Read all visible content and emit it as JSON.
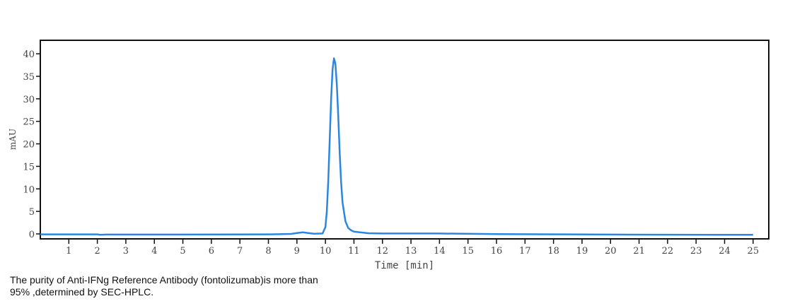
{
  "chart_data": {
    "type": "line",
    "title": "",
    "xlabel": "Time [min]",
    "ylabel": "mAU",
    "xlim": [
      0,
      25.55
    ],
    "ylim": [
      -1.1,
      43
    ],
    "xticks": [
      1,
      2,
      3,
      4,
      5,
      6,
      7,
      8,
      9,
      10,
      11,
      12,
      13,
      14,
      15,
      16,
      17,
      18,
      19,
      20,
      21,
      22,
      23,
      24,
      25
    ],
    "yticks": [
      0,
      5,
      10,
      15,
      20,
      25,
      30,
      35,
      40
    ],
    "grid": false,
    "line_color": "#2b86e0",
    "series": [
      {
        "x": [
          0,
          2,
          2.1,
          2.3,
          5,
          8,
          8.8,
          9.0,
          9.2,
          9.4,
          9.6,
          9.9,
          10.0,
          10.05,
          10.1,
          10.15,
          10.2,
          10.25,
          10.3,
          10.35,
          10.4,
          10.45,
          10.5,
          10.55,
          10.6,
          10.7,
          10.8,
          10.9,
          11.0,
          11.5,
          12,
          14,
          16,
          18.5,
          20,
          25
        ],
        "y": [
          -0.1,
          -0.1,
          -0.2,
          -0.15,
          -0.15,
          -0.1,
          0.0,
          0.2,
          0.35,
          0.2,
          0.05,
          0.1,
          1.5,
          5,
          12,
          21,
          30,
          36.5,
          39,
          37.8,
          33,
          26,
          18,
          11.5,
          7,
          2.8,
          1.3,
          0.8,
          0.5,
          0.15,
          0.1,
          0.1,
          -0.05,
          -0.1,
          -0.15,
          -0.2
        ]
      }
    ]
  },
  "caption": {
    "line1": "The purity of Anti-IFNg Reference Antibody (fontolizumab)is more than",
    "line2": "95% ,determined by SEC-HPLC."
  }
}
